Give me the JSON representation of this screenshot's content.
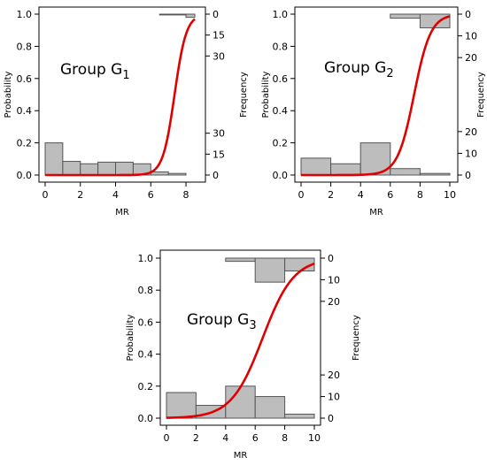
{
  "chart_data": [
    {
      "type": "logistic_with_histograms",
      "group_label": "Group G",
      "group_subscript": "1",
      "xlabel": "MR",
      "ylabel_left": "Probability",
      "ylabel_right": "Frequency",
      "xlim": [
        0,
        8.5
      ],
      "ylim": [
        0,
        1.0
      ],
      "x_ticks": [
        0,
        2,
        4,
        6,
        8
      ],
      "y_ticks": [
        0.0,
        0.2,
        0.4,
        0.6,
        0.8,
        1.0
      ],
      "freq_ticks_bottom": [
        0,
        15,
        30
      ],
      "freq_ticks_top": [
        0,
        15,
        30
      ],
      "curve": {
        "color": "#e00000",
        "midpoint": 7.35,
        "slope": 3.0
      },
      "hist_bottom": {
        "bins": [
          [
            0,
            1
          ],
          [
            1,
            2
          ],
          [
            2,
            3
          ],
          [
            3,
            4
          ],
          [
            4,
            5
          ],
          [
            5,
            6
          ],
          [
            6,
            7
          ],
          [
            7,
            8
          ]
        ],
        "probability_heights": [
          0.2,
          0.085,
          0.07,
          0.08,
          0.08,
          0.07,
          0.02,
          0.01
        ]
      },
      "hist_top": {
        "bins": [
          [
            6.5,
            7
          ],
          [
            7,
            7.5
          ],
          [
            7.5,
            8
          ],
          [
            8,
            8.5
          ]
        ],
        "probability_depths": [
          0.005,
          0.005,
          0.005,
          0.02
        ]
      }
    },
    {
      "type": "logistic_with_histograms",
      "group_label": "Group G",
      "group_subscript": "2",
      "xlabel": "MR",
      "ylabel_left": "Probability",
      "ylabel_right": "Frequency",
      "xlim": [
        0,
        10
      ],
      "ylim": [
        0,
        1.0
      ],
      "x_ticks": [
        0,
        2,
        4,
        6,
        8,
        10
      ],
      "y_ticks": [
        0.0,
        0.2,
        0.4,
        0.6,
        0.8,
        1.0
      ],
      "freq_ticks_bottom": [
        0,
        10,
        20
      ],
      "freq_ticks_top": [
        0,
        10,
        20
      ],
      "curve": {
        "color": "#e00000",
        "midpoint": 7.6,
        "slope": 1.8
      },
      "hist_bottom": {
        "bins": [
          [
            0,
            2
          ],
          [
            2,
            4
          ],
          [
            4,
            6
          ],
          [
            6,
            8
          ],
          [
            8,
            10
          ]
        ],
        "probability_heights": [
          0.105,
          0.07,
          0.2,
          0.04,
          0.01
        ]
      },
      "hist_top": {
        "bins": [
          [
            6,
            8
          ],
          [
            8,
            10
          ]
        ],
        "probability_depths": [
          0.025,
          0.085
        ]
      }
    },
    {
      "type": "logistic_with_histograms",
      "group_label": "Group G",
      "group_subscript": "3",
      "xlabel": "MR",
      "ylabel_left": "Probability",
      "ylabel_right": "Frequency",
      "xlim": [
        0,
        10
      ],
      "ylim": [
        0,
        1.0
      ],
      "x_ticks": [
        0,
        2,
        4,
        6,
        8,
        10
      ],
      "y_ticks": [
        0.0,
        0.2,
        0.4,
        0.6,
        0.8,
        1.0
      ],
      "freq_ticks_bottom": [
        0,
        10,
        20
      ],
      "freq_ticks_top": [
        0,
        10,
        20
      ],
      "curve": {
        "color": "#e00000",
        "midpoint": 6.5,
        "slope": 0.95
      },
      "hist_bottom": {
        "bins": [
          [
            0,
            2
          ],
          [
            2,
            4
          ],
          [
            4,
            6
          ],
          [
            6,
            8
          ],
          [
            8,
            10
          ]
        ],
        "probability_heights": [
          0.16,
          0.08,
          0.2,
          0.135,
          0.025
        ]
      },
      "hist_top": {
        "bins": [
          [
            4,
            6
          ],
          [
            6,
            8
          ],
          [
            8,
            10
          ]
        ],
        "probability_depths": [
          0.02,
          0.15,
          0.08
        ]
      }
    }
  ]
}
